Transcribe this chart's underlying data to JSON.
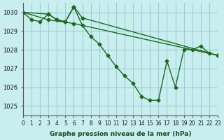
{
  "title": "Graphe pression niveau de la mer (hPa)",
  "background_color": "#c8eef0",
  "grid_color": "#a0cdd0",
  "line_color": "#1a6b1a",
  "xlim": [
    0,
    23
  ],
  "ylim": [
    1024.5,
    1030.5
  ],
  "yticks": [
    1025,
    1026,
    1027,
    1028,
    1029,
    1030
  ],
  "xtick_labels": [
    "0",
    "1",
    "2",
    "3",
    "4",
    "5",
    "6",
    "7",
    "8",
    "9",
    "10",
    "11",
    "12",
    "13",
    "14",
    "15",
    "16",
    "17",
    "18",
    "19",
    "20",
    "21",
    "22",
    "23"
  ],
  "series": [
    {
      "x": [
        0,
        1,
        2,
        3,
        4,
        5,
        6,
        7,
        8,
        9,
        10,
        11,
        12,
        13,
        14,
        15,
        16,
        17,
        18,
        19,
        20,
        21,
        22,
        23
      ],
      "y": [
        1030.0,
        1029.6,
        1029.5,
        1029.9,
        1029.6,
        1029.5,
        1030.3,
        1029.3,
        1028.7,
        1028.3,
        1027.7,
        1027.1,
        1026.6,
        1026.2,
        1025.5,
        1025.3,
        1025.3,
        1027.4,
        1026.0,
        1028.0,
        1028.0,
        1028.2,
        1027.8,
        1027.7
      ]
    },
    {
      "x": [
        0,
        3,
        4,
        5,
        6,
        7,
        23
      ],
      "y": [
        1030.0,
        1029.9,
        1029.6,
        1029.5,
        1030.3,
        1029.7,
        1027.7
      ]
    },
    {
      "x": [
        0,
        3,
        6,
        23
      ],
      "y": [
        1030.0,
        1029.6,
        1029.4,
        1027.7
      ]
    }
  ]
}
